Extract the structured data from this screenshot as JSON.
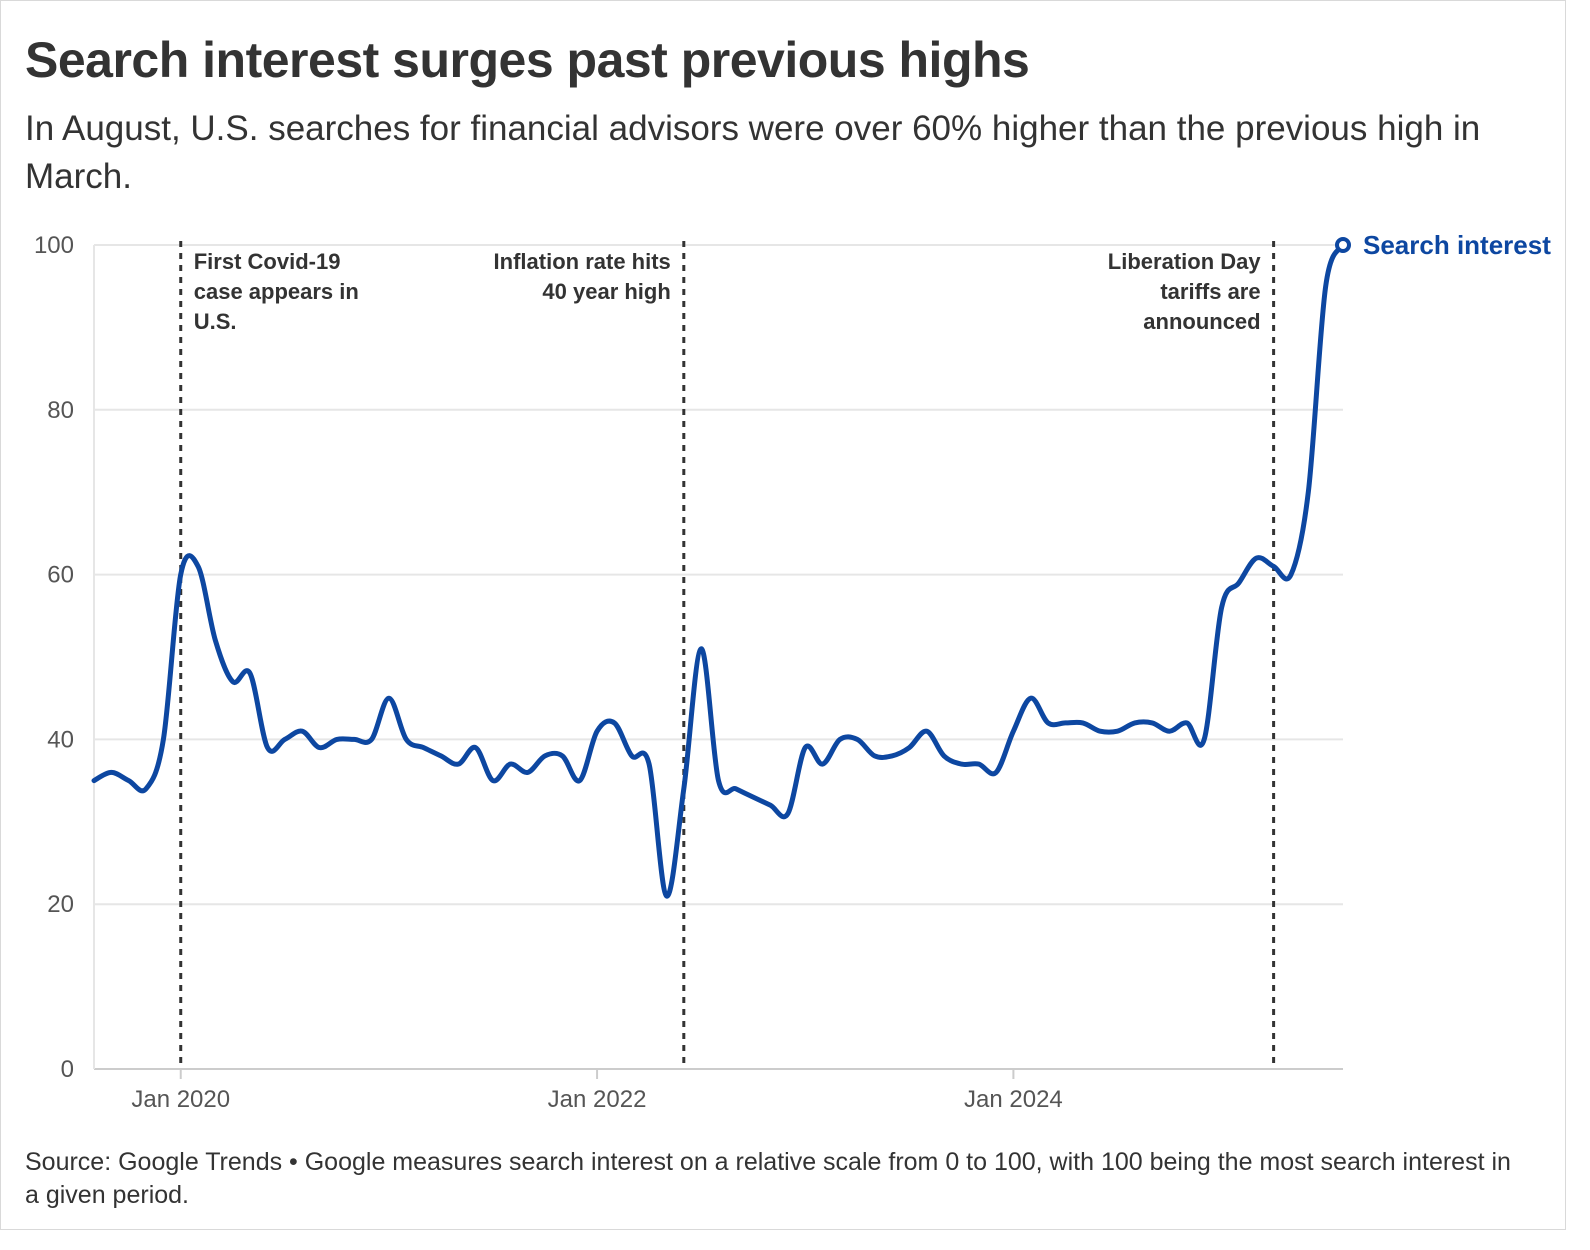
{
  "header": {
    "title": "Search interest surges past previous highs",
    "subtitle": "In August, U.S. searches for financial advisors were over 60% higher than the previous high in March."
  },
  "footer": {
    "text": "Source: Google Trends • Google measures search interest on a relative scale from 0 to 100, with 100 being the most search interest in a given period."
  },
  "colors": {
    "series": "#0d47a1",
    "grid": "#e6e6e6",
    "annotation_line": "#333333"
  },
  "chart_data": {
    "type": "line",
    "title": "Search interest surges past previous highs",
    "ylim": [
      0,
      100
    ],
    "yticks": [
      0,
      20,
      40,
      60,
      80,
      100
    ],
    "xticks": [
      {
        "date": "2020-01",
        "label": "Jan 2020"
      },
      {
        "date": "2022-01",
        "label": "Jan 2022"
      },
      {
        "date": "2024-01",
        "label": "Jan 2024"
      }
    ],
    "xlim": [
      "2019-08",
      "2025-08"
    ],
    "grid": true,
    "series": [
      {
        "name": "Search interest",
        "x": [
          "2019-08",
          "2019-09",
          "2019-10",
          "2019-11",
          "2019-12",
          "2020-01",
          "2020-02",
          "2020-03",
          "2020-04",
          "2020-05",
          "2020-06",
          "2020-07",
          "2020-08",
          "2020-09",
          "2020-10",
          "2020-11",
          "2020-12",
          "2021-01",
          "2021-02",
          "2021-03",
          "2021-04",
          "2021-05",
          "2021-06",
          "2021-07",
          "2021-08",
          "2021-09",
          "2021-10",
          "2021-11",
          "2021-12",
          "2022-01",
          "2022-02",
          "2022-03",
          "2022-04",
          "2022-05",
          "2022-06",
          "2022-07",
          "2022-08",
          "2022-09",
          "2022-10",
          "2022-11",
          "2022-12",
          "2023-01",
          "2023-02",
          "2023-03",
          "2023-04",
          "2023-05",
          "2023-06",
          "2023-07",
          "2023-08",
          "2023-09",
          "2023-10",
          "2023-11",
          "2023-12",
          "2024-01",
          "2024-02",
          "2024-03",
          "2024-04",
          "2024-05",
          "2024-06",
          "2024-07",
          "2024-08",
          "2024-09",
          "2024-10",
          "2024-11",
          "2024-12",
          "2025-01",
          "2025-02",
          "2025-03",
          "2025-04",
          "2025-05",
          "2025-06",
          "2025-07",
          "2025-08"
        ],
        "values": [
          35,
          36,
          35,
          34,
          40,
          60,
          61,
          52,
          47,
          48,
          39,
          40,
          41,
          39,
          40,
          40,
          40,
          45,
          40,
          39,
          38,
          37,
          39,
          35,
          37,
          36,
          38,
          38,
          35,
          41,
          42,
          38,
          37,
          21,
          34,
          51,
          35,
          34,
          33,
          32,
          31,
          39,
          37,
          40,
          40,
          38,
          38,
          39,
          41,
          38,
          37,
          37,
          36,
          41,
          45,
          42,
          42,
          42,
          41,
          41,
          42,
          42,
          41,
          42,
          40,
          56,
          59,
          62,
          61,
          60,
          70,
          95,
          100
        ]
      }
    ],
    "annotations": [
      {
        "date": "2020-01",
        "text": [
          "First Covid-19",
          "case appears in",
          "U.S."
        ],
        "align": "right"
      },
      {
        "date": "2022-06",
        "text": [
          "Inflation rate hits",
          "40 year high"
        ],
        "align": "left"
      },
      {
        "date": "2025-04",
        "text": [
          "Liberation Day",
          "tariffs are",
          "announced"
        ],
        "align": "left"
      }
    ],
    "end_label": "Search interest"
  }
}
